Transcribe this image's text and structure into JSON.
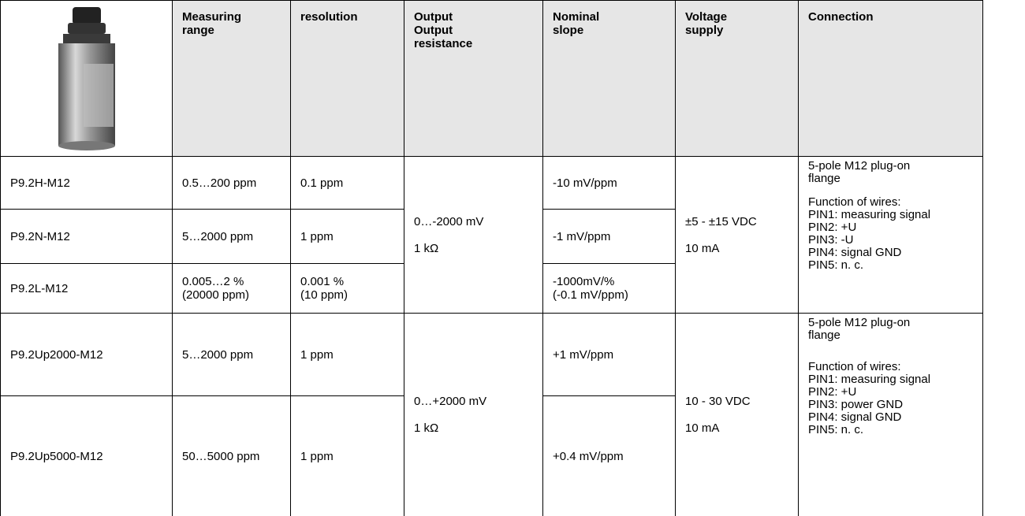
{
  "table": {
    "header": [
      [
        "Measuring",
        "range"
      ],
      [
        "resolution"
      ],
      [
        "Output",
        "Output",
        "resistance"
      ],
      [
        "Nominal",
        "slope"
      ],
      [
        "Voltage",
        "supply"
      ],
      [
        "Connection"
      ]
    ],
    "groups": [
      {
        "rows": [
          {
            "model": "P9.2H-M12",
            "range": [
              "0.5…200 ppm"
            ],
            "resolution": [
              "0.1 ppm"
            ],
            "slope": [
              "-10 mV/ppm"
            ]
          },
          {
            "model": "P9.2N-M12",
            "range": [
              "5…2000 ppm"
            ],
            "resolution": [
              "1 ppm"
            ],
            "slope": [
              "-1 mV/ppm"
            ]
          },
          {
            "model": "P9.2L-M12",
            "range": [
              "0.005…2 %",
              "(20000 ppm)"
            ],
            "resolution": [
              "0.001 %",
              "(10 ppm)"
            ],
            "slope": [
              "-1000mV/%",
              "(-0.1 mV/ppm)"
            ]
          }
        ],
        "output": [
          "0…-2000 mV",
          "1 kΩ"
        ],
        "voltage": [
          "±5 - ±15 VDC",
          "10 mA"
        ],
        "connection": {
          "plug": [
            "5-pole M12 plug-on",
            "flange"
          ],
          "wires": [
            "Function of wires:",
            "PIN1: measuring signal",
            "PIN2: +U",
            "PIN3: -U",
            "PIN4: signal GND",
            "PIN5: n. c."
          ]
        }
      },
      {
        "rows": [
          {
            "model": "P9.2Up2000-M12",
            "range": [
              "5…2000 ppm"
            ],
            "resolution": [
              "1 ppm"
            ],
            "slope": [
              "+1 mV/ppm"
            ]
          },
          {
            "model": "P9.2Up5000-M12",
            "range": [
              "50…5000 ppm"
            ],
            "resolution": [
              "1 ppm"
            ],
            "slope": [
              "+0.4 mV/ppm"
            ]
          }
        ],
        "output": [
          "0…+2000 mV",
          "1 kΩ"
        ],
        "voltage": [
          "10 - 30 VDC",
          "10 mA"
        ],
        "connection": {
          "plug": [
            "5-pole M12 plug-on",
            "flange"
          ],
          "wires": [
            "Function of wires:",
            "PIN1: measuring signal",
            "PIN2: +U",
            "PIN3: power GND",
            "PIN4: signal GND",
            "PIN5: n. c."
          ]
        }
      }
    ]
  }
}
